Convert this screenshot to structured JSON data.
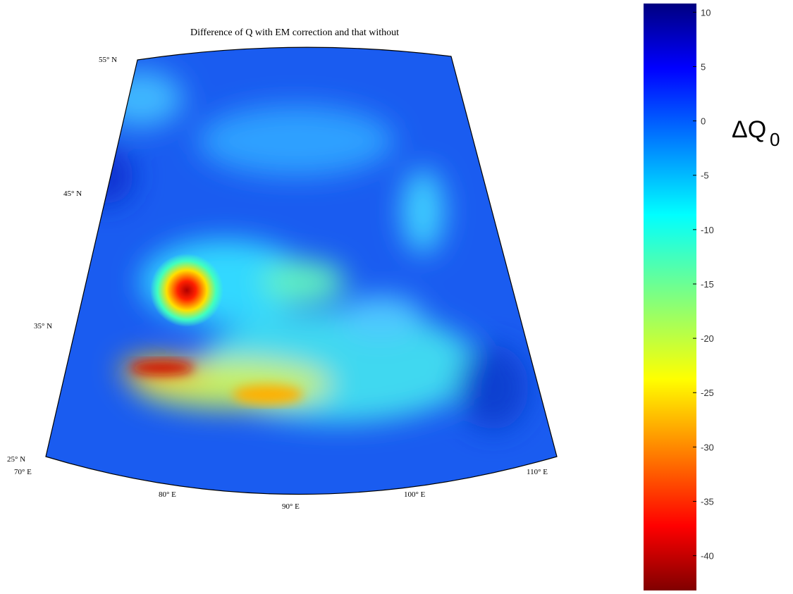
{
  "title": "Difference of Q with EM correction and that without",
  "map": {
    "lat_labels": [
      "55° N",
      "45° N",
      "35° N",
      "25° N"
    ],
    "lon_labels": [
      "70° E",
      "80° E",
      "90° E",
      "100° E",
      "110° E"
    ]
  },
  "colorbar": {
    "label": "ΔQ",
    "label_subscript": "0",
    "lim": [
      -43.2,
      10.8
    ],
    "ticks": [
      10,
      5,
      0,
      -5,
      -10,
      -15,
      -20,
      -25,
      -30,
      -35,
      -40
    ]
  }
}
